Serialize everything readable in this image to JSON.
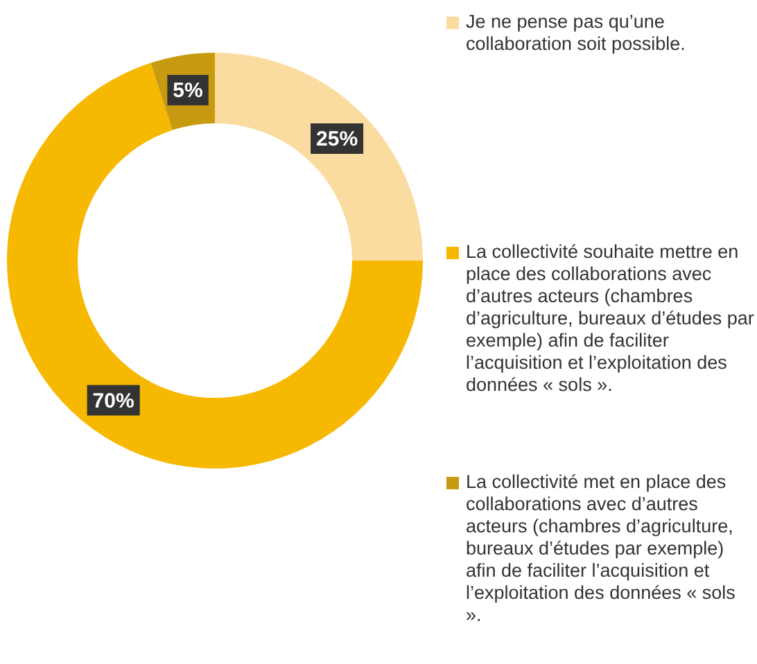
{
  "chart_data": {
    "type": "donut",
    "categories": [
      "Je ne pense pas qu’une collaboration soit possible.",
      "La collectivité souhaite mettre en place des collaborations avec d’autres acteurs (chambres d’agriculture, bureaux d’études par exemple) afin de faciliter l’acquisition et l’exploitation des données « sols ».",
      "La collectivité met en place des collaborations avec d’autres acteurs (chambres d’agriculture, bureaux d’études par exemple) afin de faciliter l’acquisition et l’exploitation des données « sols »."
    ],
    "values": [
      25,
      70,
      5
    ],
    "colors": [
      "#fbdca0",
      "#f6b800",
      "#c89a10"
    ],
    "value_labels": [
      "25%",
      "70%",
      "5%"
    ],
    "legend": "right"
  }
}
